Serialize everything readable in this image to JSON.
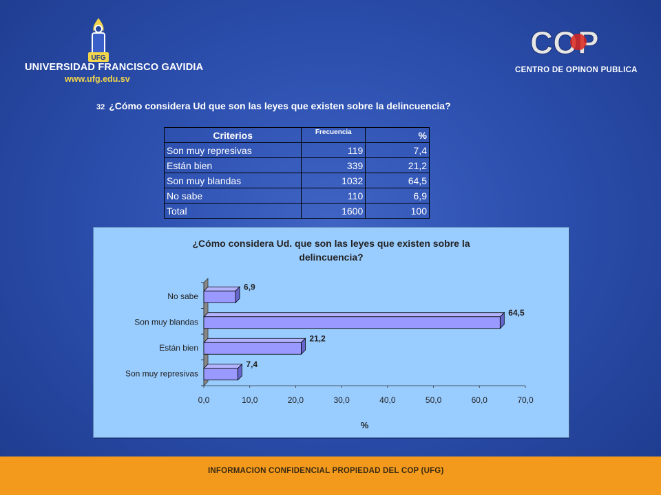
{
  "header": {
    "university_name": "UNIVERSIDAD FRANCISCO GAVIDIA",
    "university_url": "www.ufg.edu.sv",
    "emblem_text": "UFG",
    "cop_logo_text": "COP",
    "cop_subtitle": "CENTRO DE OPINON PUBLICA"
  },
  "question": {
    "number": "32",
    "text": "¿Cómo considera Ud que son las leyes que existen sobre la delincuencia?"
  },
  "table": {
    "headers": {
      "criterio": "Criterios",
      "frecuencia": "Frecuencia",
      "porcentaje": "%"
    },
    "rows": [
      {
        "label": "Son muy represivas",
        "freq": "119",
        "pct": "7,4"
      },
      {
        "label": "Están bien",
        "freq": "339",
        "pct": "21,2"
      },
      {
        "label": "Son muy blandas",
        "freq": "1032",
        "pct": "64,5"
      },
      {
        "label": "No sabe",
        "freq": "110",
        "pct": "6,9"
      },
      {
        "label": "Total",
        "freq": "1600",
        "pct": "100"
      }
    ]
  },
  "chart_data": {
    "type": "bar",
    "orientation": "horizontal",
    "title_lines": [
      "¿Cómo considera Ud. que son las leyes que existen sobre la",
      "delincuencia?"
    ],
    "categories": [
      "Son muy represivas",
      "Están bien",
      "Son muy blandas",
      "No sabe"
    ],
    "values": [
      7.4,
      21.2,
      64.5,
      6.9
    ],
    "value_labels": [
      "7,4",
      "21,2",
      "64,5",
      "6,9"
    ],
    "xlim": [
      0,
      70
    ],
    "xticks": [
      "0,0",
      "10,0",
      "20,0",
      "30,0",
      "40,0",
      "50,0",
      "60,0",
      "70,0"
    ],
    "xlabel": "%",
    "ylabel": "",
    "grid": false,
    "legend": "none",
    "colors": {
      "bar": "#9999ff",
      "background": "#99ccff",
      "bar_border": "#000000"
    }
  },
  "footer": {
    "text": "INFORMACION CONFIDENCIAL PROPIEDAD DEL COP (UFG)"
  }
}
